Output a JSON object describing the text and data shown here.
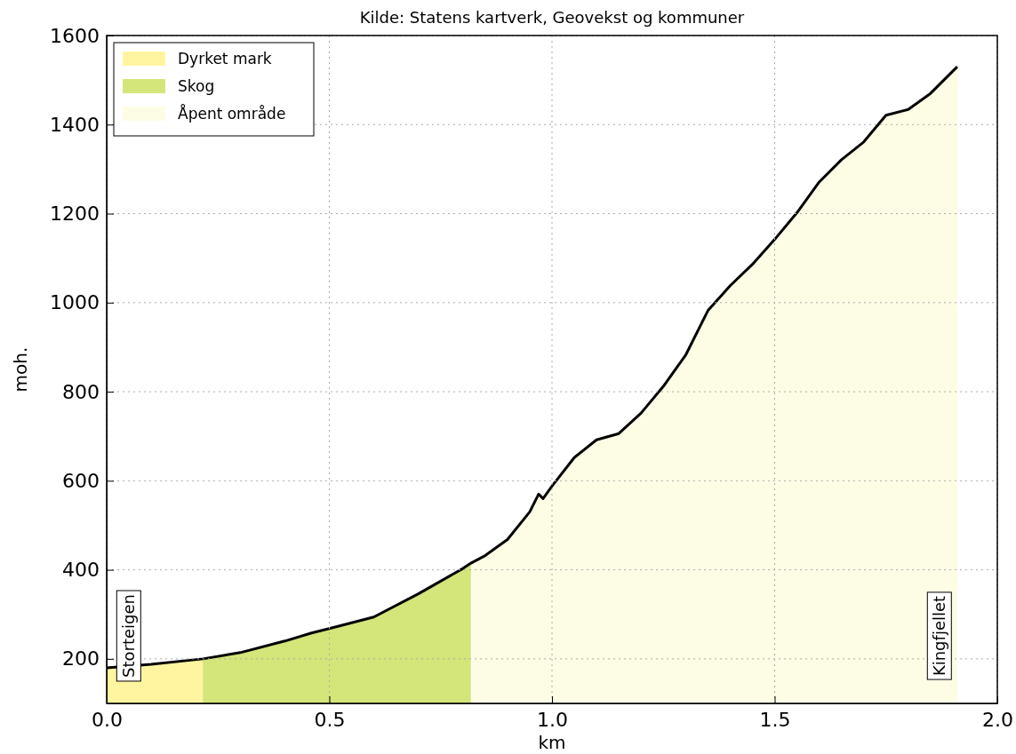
{
  "chart_data": {
    "type": "line",
    "title": "Kilde: Statens kartverk, Geovekst og kommuner",
    "xlabel": "km",
    "ylabel": "moh.",
    "xlim": [
      0,
      2
    ],
    "ylim": [
      100,
      1600
    ],
    "xticks": [
      {
        "value": 0,
        "label": "0.0"
      },
      {
        "value": 0.5,
        "label": "0.5"
      },
      {
        "value": 1,
        "label": "1.0"
      },
      {
        "value": 1.5,
        "label": "1.5"
      },
      {
        "value": 2,
        "label": "2.0"
      }
    ],
    "yticks": [
      200,
      400,
      600,
      800,
      1000,
      1200,
      1400,
      1600
    ],
    "grid": true,
    "legend": "top left",
    "series": [
      {
        "name": "Dyrket mark",
        "type": "area",
        "color": "#fff5a0",
        "x": [
          0,
          0.1,
          0.216
        ],
        "values": [
          180,
          188,
          200
        ]
      },
      {
        "name": "Skog",
        "type": "area",
        "color": "#d4e57a",
        "x": [
          0.216,
          0.3,
          0.4,
          0.46,
          0.5,
          0.6,
          0.7,
          0.8,
          0.818
        ],
        "values": [
          200,
          214,
          240,
          258,
          268,
          294,
          346,
          403,
          415
        ]
      },
      {
        "name": "Åpent område",
        "type": "area",
        "color": "#fdfde6",
        "x": [
          0.818,
          0.85,
          0.9,
          0.95,
          0.97,
          0.98,
          1.0,
          1.05,
          1.1,
          1.15,
          1.2,
          1.25,
          1.3,
          1.35,
          1.4,
          1.45,
          1.5,
          1.55,
          1.6,
          1.65,
          1.7,
          1.75,
          1.8,
          1.85,
          1.9,
          1.91
        ],
        "values": [
          415,
          432,
          468,
          530,
          570,
          560,
          588,
          652,
          692,
          706,
          752,
          812,
          882,
          982,
          1038,
          1086,
          1142,
          1202,
          1271,
          1321,
          1361,
          1421,
          1434,
          1470,
          1520,
          1530
        ]
      },
      {
        "color": "#000000",
        "x": [
          0,
          0.1,
          0.216,
          0.3,
          0.4,
          0.46,
          0.5,
          0.6,
          0.7,
          0.8,
          0.818,
          0.85,
          0.9,
          0.95,
          0.97,
          0.98,
          1.0,
          1.05,
          1.1,
          1.15,
          1.2,
          1.25,
          1.3,
          1.35,
          1.4,
          1.45,
          1.5,
          1.55,
          1.6,
          1.65,
          1.7,
          1.75,
          1.8,
          1.85,
          1.9,
          1.91
        ],
        "values": [
          180,
          188,
          200,
          214,
          240,
          258,
          268,
          294,
          346,
          403,
          415,
          432,
          468,
          530,
          570,
          560,
          588,
          652,
          692,
          706,
          752,
          812,
          882,
          982,
          1038,
          1086,
          1142,
          1202,
          1271,
          1321,
          1361,
          1421,
          1434,
          1470,
          1520,
          1530
        ]
      }
    ],
    "annotations": [
      "Storteigen",
      "Kingfjellet"
    ]
  }
}
